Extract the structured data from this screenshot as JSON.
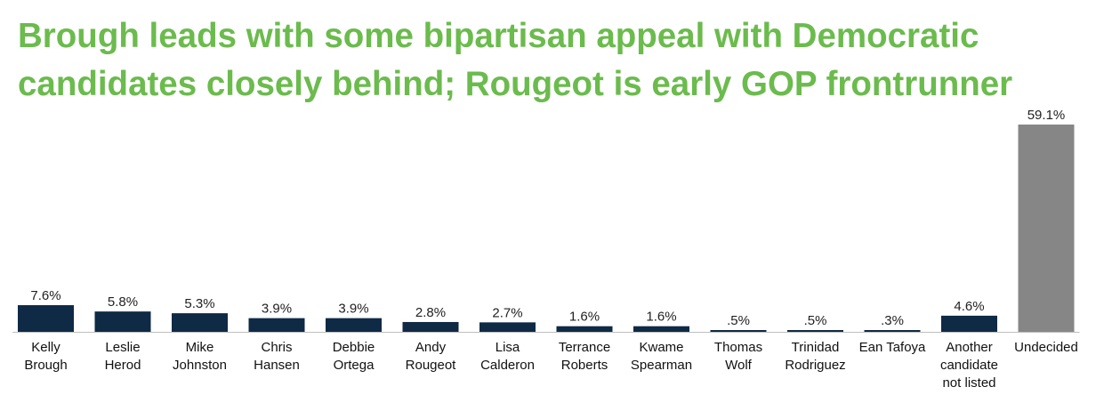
{
  "title_line1": "Brough leads with some bipartisan appeal with Democratic",
  "title_line2": "candidates closely behind; Rougeot is early GOP frontrunner",
  "colors": {
    "title": "#6bbb4d",
    "candidate_bar": "#0f2a45",
    "undecided_bar": "#868686",
    "axis": "#bfbfbf"
  },
  "chart_data": {
    "type": "bar",
    "categories": [
      [
        "Kelly",
        "Brough"
      ],
      [
        "Leslie",
        "Herod"
      ],
      [
        "Mike",
        "Johnston"
      ],
      [
        "Chris",
        "Hansen"
      ],
      [
        "Debbie",
        "Ortega"
      ],
      [
        "Andy",
        "Rougeot"
      ],
      [
        "Lisa",
        "Calderon"
      ],
      [
        "Terrance",
        "Roberts"
      ],
      [
        "Kwame",
        "Spearman"
      ],
      [
        "Thomas",
        "Wolf"
      ],
      [
        "Trinidad",
        "Rodriguez"
      ],
      [
        "Ean Tafoya"
      ],
      [
        "Another",
        "candidate",
        "not listed"
      ],
      [
        "Undecided"
      ]
    ],
    "values": [
      7.6,
      5.8,
      5.3,
      3.9,
      3.9,
      2.8,
      2.7,
      1.6,
      1.6,
      0.5,
      0.5,
      0.3,
      4.6,
      59.1
    ],
    "value_labels": [
      "7.6%",
      "5.8%",
      "5.3%",
      "3.9%",
      "3.9%",
      "2.8%",
      "2.7%",
      "1.6%",
      "1.6%",
      ".5%",
      ".5%",
      ".3%",
      "4.6%",
      "59.1%"
    ],
    "highlight_index": 13,
    "ylim": [
      0,
      59.1
    ]
  }
}
